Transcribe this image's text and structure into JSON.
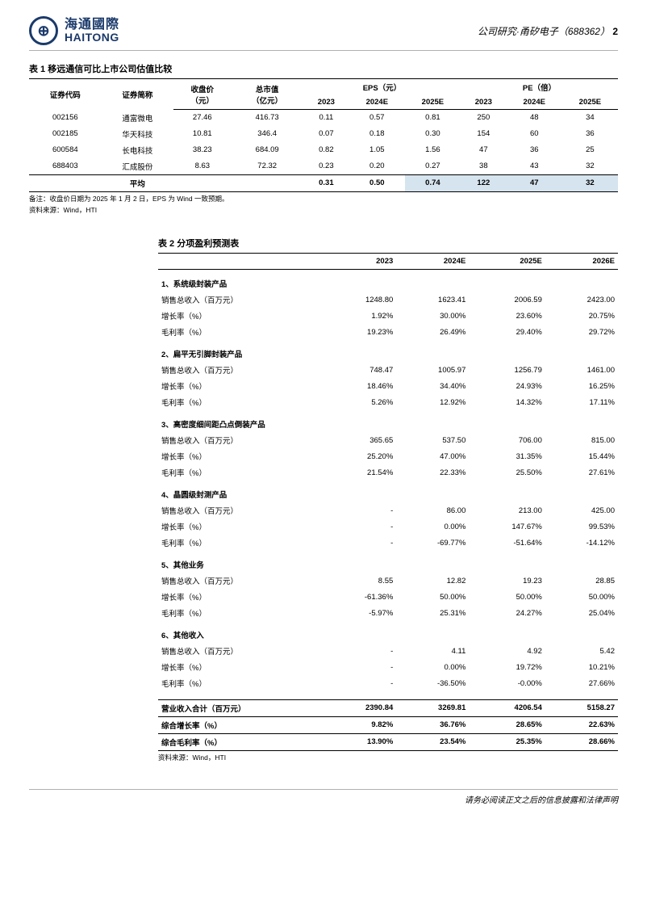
{
  "header": {
    "company_cn": "海通國際",
    "company_en": "HAITONG",
    "logo_glyph": "⊕",
    "right_label": "公司研究·甬矽电子（688362）",
    "page_num": "2"
  },
  "table1": {
    "title": "表 1 移远通信可比上市公司估值比较",
    "columns": {
      "code": "证券代码",
      "name": "证券简称",
      "close": "收盘价（元）",
      "mktcap": "总市值（亿元）",
      "eps_group": "EPS（元）",
      "pe_group": "PE（倍）",
      "years": [
        "2023",
        "2024E",
        "2025E"
      ]
    },
    "rows": [
      {
        "code": "002156",
        "name": "通富微电",
        "close": "27.46",
        "mktcap": "416.73",
        "eps": [
          "0.11",
          "0.57",
          "0.81"
        ],
        "pe": [
          "250",
          "48",
          "34"
        ]
      },
      {
        "code": "002185",
        "name": "华天科技",
        "close": "10.81",
        "mktcap": "346.4",
        "eps": [
          "0.07",
          "0.18",
          "0.30"
        ],
        "pe": [
          "154",
          "60",
          "36"
        ]
      },
      {
        "code": "600584",
        "name": "长电科技",
        "close": "38.23",
        "mktcap": "684.09",
        "eps": [
          "0.82",
          "1.05",
          "1.56"
        ],
        "pe": [
          "47",
          "36",
          "25"
        ]
      },
      {
        "code": "688403",
        "name": "汇成股份",
        "close": "8.63",
        "mktcap": "72.32",
        "eps": [
          "0.23",
          "0.20",
          "0.27"
        ],
        "pe": [
          "38",
          "43",
          "32"
        ]
      }
    ],
    "average": {
      "label": "平均",
      "eps": [
        "0.31",
        "0.50",
        "0.74"
      ],
      "pe": [
        "122",
        "47",
        "32"
      ]
    },
    "note1": "备注：收盘价日期为 2025 年 1 月 2 日，EPS 为 Wind 一致预期。",
    "note2": "资料来源：Wind，HTI"
  },
  "table2": {
    "title": "表 2 分项盈利预测表",
    "years": [
      "2023",
      "2024E",
      "2025E",
      "2026E"
    ],
    "metric_labels": {
      "revenue": "销售总收入（百万元）",
      "growth": "增长率（%）",
      "margin": "毛利率（%）"
    },
    "segments": [
      {
        "name": "1、系统级封装产品",
        "revenue": [
          "1248.80",
          "1623.41",
          "2006.59",
          "2423.00"
        ],
        "growth": [
          "1.92%",
          "30.00%",
          "23.60%",
          "20.75%"
        ],
        "margin": [
          "19.23%",
          "26.49%",
          "29.40%",
          "29.72%"
        ]
      },
      {
        "name": "2、扁平无引脚封装产品",
        "revenue": [
          "748.47",
          "1005.97",
          "1256.79",
          "1461.00"
        ],
        "growth": [
          "18.46%",
          "34.40%",
          "24.93%",
          "16.25%"
        ],
        "margin": [
          "5.26%",
          "12.92%",
          "14.32%",
          "17.11%"
        ]
      },
      {
        "name": "3、高密度细间距凸点倒装产品",
        "revenue": [
          "365.65",
          "537.50",
          "706.00",
          "815.00"
        ],
        "growth": [
          "25.20%",
          "47.00%",
          "31.35%",
          "15.44%"
        ],
        "margin": [
          "21.54%",
          "22.33%",
          "25.50%",
          "27.61%"
        ]
      },
      {
        "name": "4、晶圆级封测产品",
        "revenue": [
          "-",
          "86.00",
          "213.00",
          "425.00"
        ],
        "growth": [
          "-",
          "0.00%",
          "147.67%",
          "99.53%"
        ],
        "margin": [
          "-",
          "-69.77%",
          "-51.64%",
          "-14.12%"
        ]
      },
      {
        "name": "5、其他业务",
        "revenue": [
          "8.55",
          "12.82",
          "19.23",
          "28.85"
        ],
        "growth": [
          "-61.36%",
          "50.00%",
          "50.00%",
          "50.00%"
        ],
        "margin": [
          "-5.97%",
          "25.31%",
          "24.27%",
          "25.04%"
        ]
      },
      {
        "name": "6、其他收入",
        "revenue": [
          "-",
          "4.11",
          "4.92",
          "5.42"
        ],
        "growth": [
          "-",
          "0.00%",
          "19.72%",
          "10.21%"
        ],
        "margin": [
          "-",
          "-36.50%",
          "-0.00%",
          "27.66%"
        ]
      }
    ],
    "totals": [
      {
        "label": "营业收入合计（百万元）",
        "values": [
          "2390.84",
          "3269.81",
          "4206.54",
          "5158.27"
        ]
      },
      {
        "label": "综合增长率（%）",
        "values": [
          "9.82%",
          "36.76%",
          "28.65%",
          "22.63%"
        ]
      },
      {
        "label": "综合毛利率（%）",
        "values": [
          "13.90%",
          "23.54%",
          "25.35%",
          "28.66%"
        ]
      }
    ],
    "source": "资料来源：Wind，HTI"
  },
  "footer": "请务必阅读正文之后的信息披露和法律声明",
  "highlight_color": "#d6e4ef",
  "logo_color": "#1b3a6b"
}
